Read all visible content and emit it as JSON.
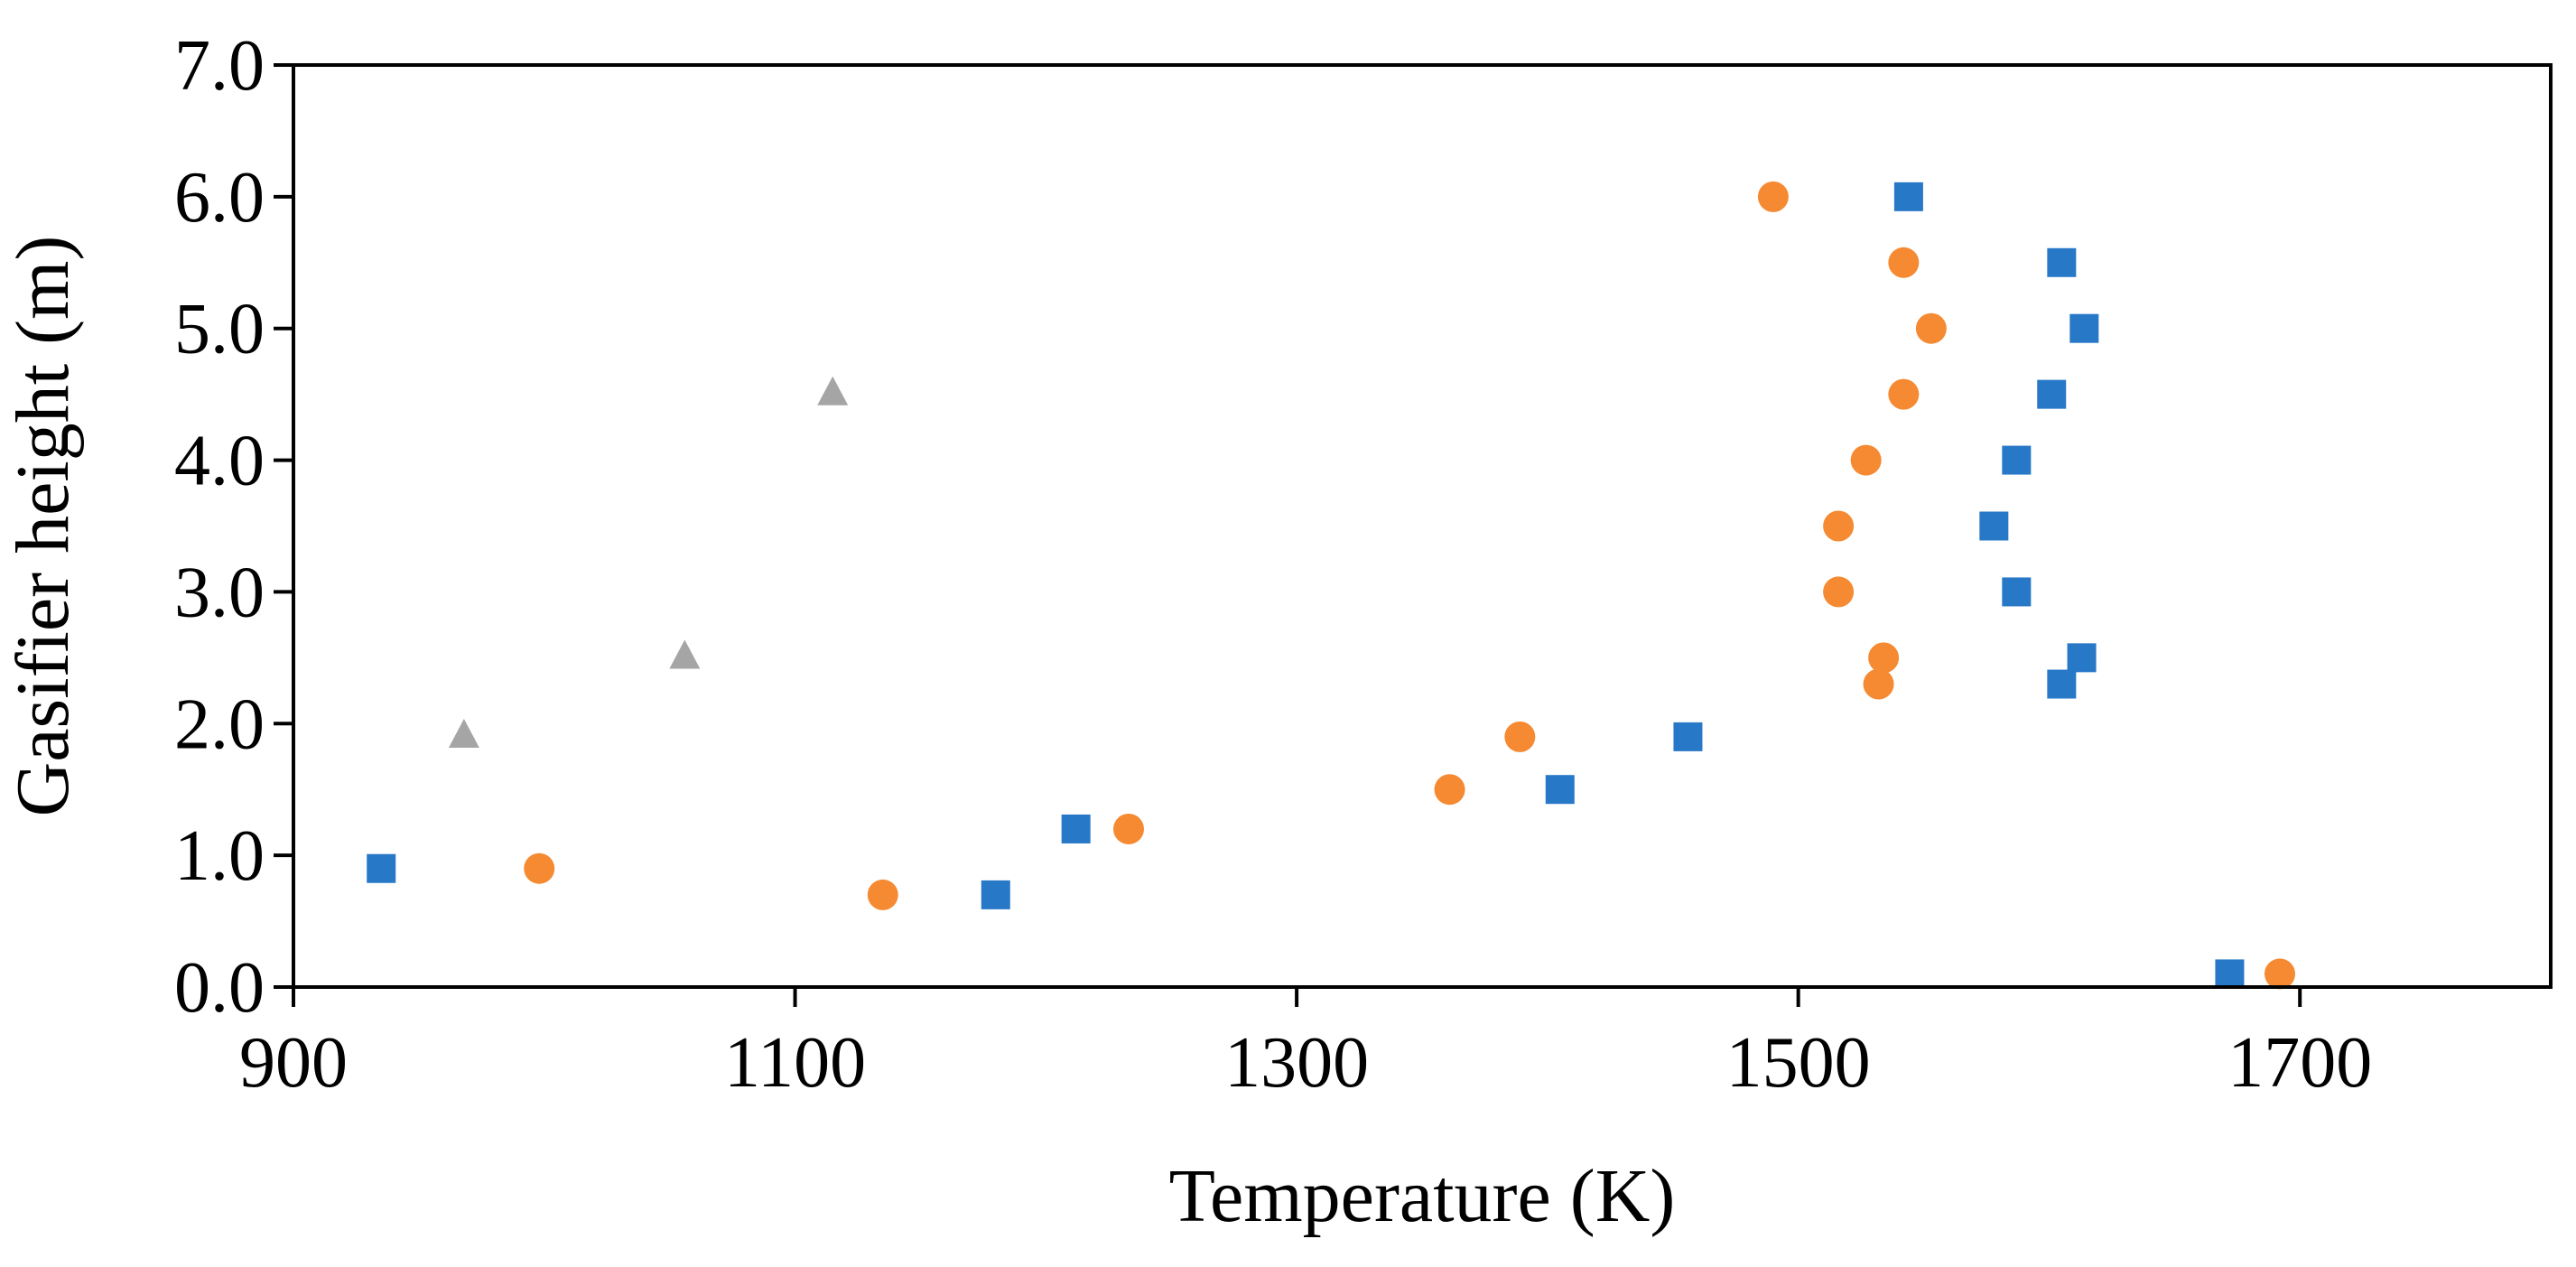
{
  "chart_data": {
    "type": "scatter",
    "title": "",
    "xlabel": "Temperature (K)",
    "ylabel": "Gasifier height (m)",
    "xlim": [
      900,
      1800
    ],
    "ylim": [
      0.0,
      7.0
    ],
    "x_ticks": [
      900,
      1100,
      1300,
      1500,
      1700
    ],
    "x_tick_labels": [
      "900",
      "1100",
      "1300",
      "1500",
      "1700"
    ],
    "y_ticks": [
      0,
      1,
      2,
      3,
      4,
      5,
      6,
      7
    ],
    "y_tick_labels": [
      "0.0",
      "1.0",
      "2.0",
      "3.0",
      "4.0",
      "5.0",
      "6.0",
      "7.0"
    ],
    "grid": false,
    "legend": "none",
    "series": [
      {
        "name": "blue-squares",
        "marker": "square",
        "color": "#2878c8",
        "points": [
          {
            "x": 935,
            "y": 0.9
          },
          {
            "x": 1180,
            "y": 0.7
          },
          {
            "x": 1212,
            "y": 1.2
          },
          {
            "x": 1405,
            "y": 1.5
          },
          {
            "x": 1456,
            "y": 1.9
          },
          {
            "x": 1544,
            "y": 6.0
          },
          {
            "x": 1605,
            "y": 5.5
          },
          {
            "x": 1614,
            "y": 5.0
          },
          {
            "x": 1601,
            "y": 4.5
          },
          {
            "x": 1587,
            "y": 4.0
          },
          {
            "x": 1578,
            "y": 3.5
          },
          {
            "x": 1587,
            "y": 3.0
          },
          {
            "x": 1613,
            "y": 2.5
          },
          {
            "x": 1605,
            "y": 2.3
          },
          {
            "x": 1672,
            "y": 0.1
          }
        ]
      },
      {
        "name": "orange-circles",
        "marker": "circle",
        "color": "#f58a32",
        "points": [
          {
            "x": 998,
            "y": 0.9
          },
          {
            "x": 1135,
            "y": 0.7
          },
          {
            "x": 1233,
            "y": 1.2
          },
          {
            "x": 1361,
            "y": 1.5
          },
          {
            "x": 1389,
            "y": 1.9
          },
          {
            "x": 1490,
            "y": 6.0
          },
          {
            "x": 1542,
            "y": 5.5
          },
          {
            "x": 1553,
            "y": 5.0
          },
          {
            "x": 1542,
            "y": 4.5
          },
          {
            "x": 1527,
            "y": 4.0
          },
          {
            "x": 1516,
            "y": 3.5
          },
          {
            "x": 1516,
            "y": 3.0
          },
          {
            "x": 1534,
            "y": 2.5
          },
          {
            "x": 1532,
            "y": 2.3
          },
          {
            "x": 1692,
            "y": 0.1
          }
        ]
      },
      {
        "name": "gray-triangles",
        "marker": "triangle",
        "color": "#a5a5a5",
        "points": [
          {
            "x": 968,
            "y": 1.9
          },
          {
            "x": 1056,
            "y": 2.5
          },
          {
            "x": 1115,
            "y": 4.5
          }
        ]
      }
    ]
  }
}
